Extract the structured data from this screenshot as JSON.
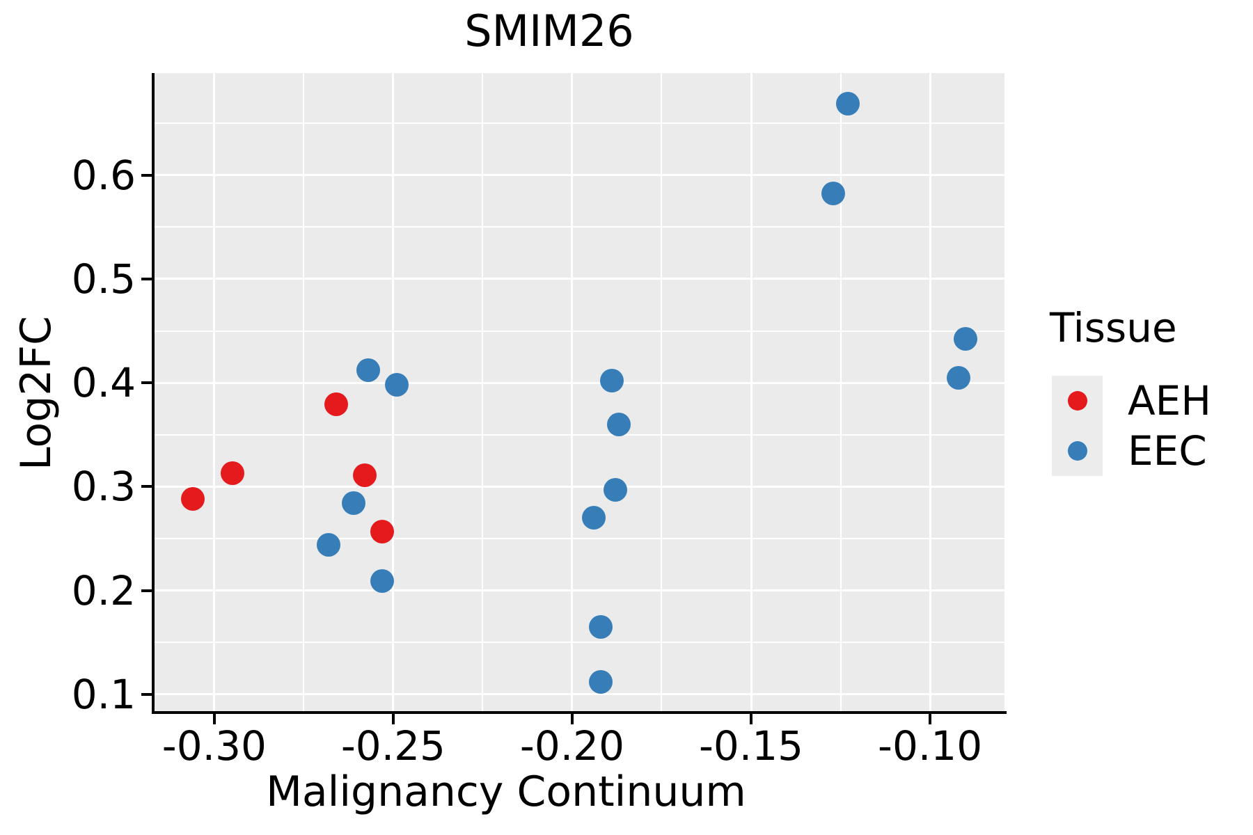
{
  "title": "SMIM26",
  "chart_data": {
    "type": "scatter",
    "title": "SMIM26",
    "xlabel": "Malignancy Continuum",
    "ylabel": "Log2FC",
    "xlim": [
      -0.3167,
      -0.0792
    ],
    "ylim": [
      0.0839,
      0.6982
    ],
    "x_ticks": [
      -0.3,
      -0.25,
      -0.2,
      -0.15,
      -0.1
    ],
    "x_tick_labels": [
      "-0.30",
      "-0.25",
      "-0.20",
      "-0.15",
      "-0.10"
    ],
    "x_minor_gridlines": [
      -0.275,
      -0.225,
      -0.175,
      -0.125
    ],
    "y_ticks": [
      0.1,
      0.2,
      0.3,
      0.4,
      0.5,
      0.6
    ],
    "y_tick_labels": [
      "0.1",
      "0.2",
      "0.3",
      "0.4",
      "0.5",
      "0.6"
    ],
    "y_minor_gridlines": [
      0.15,
      0.25,
      0.35,
      0.45,
      0.55,
      0.65
    ],
    "grid": true,
    "plot_background": "#EBEBEB",
    "gridline_color": "#FFFFFF",
    "legend_position": "right",
    "legend_title": "Tissue",
    "series": [
      {
        "name": "AEH",
        "color": "#E41A1C",
        "points": [
          [
            -0.306,
            0.288
          ],
          [
            -0.295,
            0.313
          ],
          [
            -0.266,
            0.379
          ],
          [
            -0.258,
            0.311
          ],
          [
            -0.253,
            0.257
          ]
        ]
      },
      {
        "name": "EEC",
        "color": "#377EB8",
        "points": [
          [
            -0.257,
            0.412
          ],
          [
            -0.249,
            0.398
          ],
          [
            -0.261,
            0.284
          ],
          [
            -0.268,
            0.244
          ],
          [
            -0.253,
            0.209
          ],
          [
            -0.189,
            0.402
          ],
          [
            -0.187,
            0.36
          ],
          [
            -0.188,
            0.297
          ],
          [
            -0.194,
            0.27
          ],
          [
            -0.192,
            0.165
          ],
          [
            -0.192,
            0.112
          ],
          [
            -0.123,
            0.669
          ],
          [
            -0.127,
            0.582
          ],
          [
            -0.09,
            0.442
          ],
          [
            -0.092,
            0.405
          ]
        ]
      }
    ]
  },
  "legend": {
    "title": "Tissue",
    "items": [
      {
        "label": "AEH",
        "color": "#E41A1C"
      },
      {
        "label": "EEC",
        "color": "#377EB8"
      }
    ]
  }
}
